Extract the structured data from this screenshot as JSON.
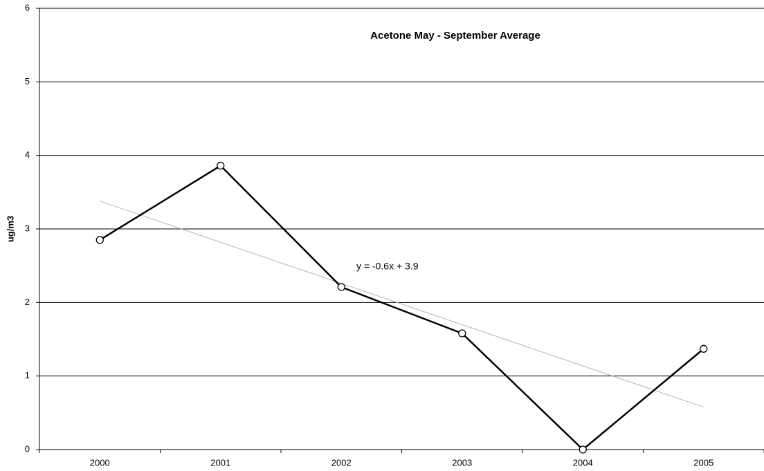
{
  "chart_data": {
    "type": "line",
    "title": "Acetone  May - September Average",
    "y_label": "ug/m3",
    "annotation": "y = -0.6x + 3.9",
    "categories": [
      "2000",
      "2001",
      "2002",
      "2003",
      "2004",
      "2005"
    ],
    "series": [
      {
        "name": "Acetone",
        "color": "#000000",
        "values": [
          2.85,
          3.86,
          2.21,
          1.58,
          0,
          1.37
        ]
      }
    ],
    "trendline": true,
    "trendline_color": "#b4b4b4",
    "ylim": [
      0,
      6
    ],
    "yticks": [
      0,
      1,
      2,
      3,
      4,
      5,
      6
    ],
    "grid": true
  }
}
